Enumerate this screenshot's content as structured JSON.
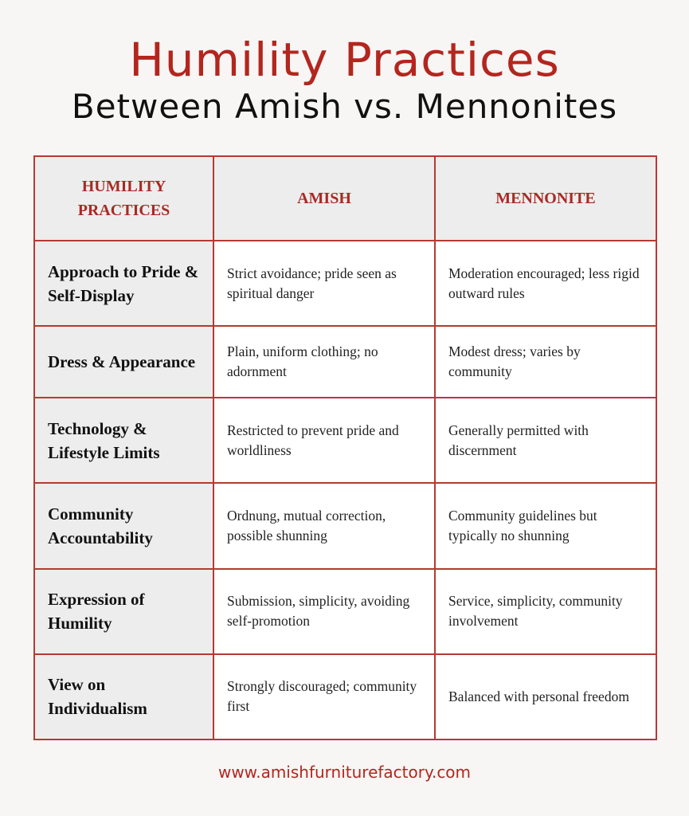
{
  "title": {
    "line1": "Humility Practices",
    "line2": "Between Amish vs. Mennonites"
  },
  "colors": {
    "accent": "#b3261e",
    "border": "#b53a32",
    "header_bg": "#ededed"
  },
  "table": {
    "headers": [
      "HUMILITY PRACTICES",
      "AMISH",
      "MENNONITE"
    ],
    "rows": [
      {
        "practice": "Approach to Pride & Self-Display",
        "amish": "Strict avoidance; pride seen as spiritual danger",
        "mennonite": "Moderation encouraged; less rigid outward rules"
      },
      {
        "practice": "Dress & Appearance",
        "amish": "Plain, uniform clothing; no adornment",
        "mennonite": "Modest dress; varies by community"
      },
      {
        "practice": "Technology & Lifestyle Limits",
        "amish": "Restricted to prevent pride and worldliness",
        "mennonite": "Generally permitted with discernment"
      },
      {
        "practice": "Community Accountability",
        "amish": "Ordnung, mutual correction, possible shunning",
        "mennonite": "Community guidelines but typically no shunning"
      },
      {
        "practice": "Expression of Humility",
        "amish": "Submission, simplicity, avoiding self-promotion",
        "mennonite": "Service, simplicity, community involvement"
      },
      {
        "practice": "View on Individualism",
        "amish": "Strongly discouraged; community first",
        "mennonite": "Balanced with personal freedom"
      }
    ]
  },
  "footer": {
    "website": "www.amishfurniturefactory.com"
  }
}
